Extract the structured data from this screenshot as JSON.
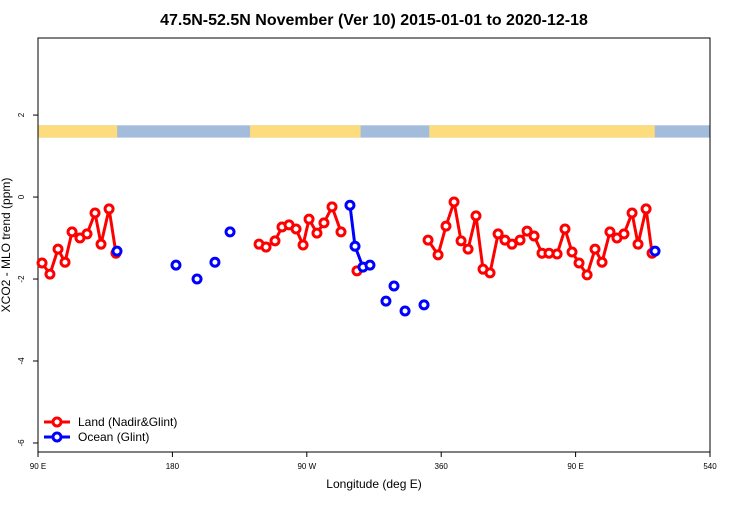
{
  "chart_data": {
    "type": "line",
    "title": "47.5N-52.5N November (Ver 10)   2015-01-01 to 2020-12-18",
    "x_label": "Longitude (deg E)",
    "y_label": "XCO2 - MLO trend (ppm)",
    "xlim": [
      90,
      540
    ],
    "xticks": [
      {
        "value": 90,
        "label": "90 E"
      },
      180,
      {
        "value": 270,
        "label": "90 W"
      },
      360,
      {
        "value": 450,
        "label": "90 E"
      },
      540
    ],
    "ylim": [
      -6.22,
      3.88
    ],
    "yticks": [
      -6,
      -4,
      -2,
      0,
      2
    ],
    "legend": "bottom-left",
    "surface_band": {
      "ylim": [
        1.45,
        1.75
      ],
      "land_color": "#fcdc7c",
      "ocean_color": "#a4bcdc",
      "land_ranges": [
        [
          90,
          143
        ],
        [
          232,
          306
        ],
        [
          352,
          503
        ]
      ]
    },
    "series": [
      {
        "name": "Land (Nadir&Glint)",
        "color": "#ff0000",
        "x": [
          92.7,
          98.0,
          103.4,
          108.1,
          112.8,
          118.1,
          122.8,
          128.2,
          132.2,
          137.6,
          142.2,
          null,
          238.0,
          242.7,
          248.7,
          253.4,
          258.1,
          262.8,
          267.5,
          271.5,
          276.8,
          281.5,
          286.9,
          292.9,
          null,
          303.6,
          null,
          351.2,
          357.9,
          363.2,
          368.6,
          373.3,
          378.0,
          383.3,
          388.0,
          392.7,
          398.1,
          402.7,
          407.4,
          412.8,
          417.5,
          422.2,
          427.5,
          432.2,
          437.6,
          442.9,
          447.6,
          452.3,
          457.7,
          463.0,
          467.7,
          473.0,
          477.7,
          482.4,
          487.8,
          491.8,
          497.2,
          501.2
        ],
        "values": [
          -1.61,
          -1.88,
          -1.27,
          -1.59,
          -0.85,
          -1.0,
          -0.9,
          -0.39,
          -1.15,
          -0.29,
          -1.37,
          null,
          -1.15,
          -1.22,
          -1.07,
          -0.73,
          -0.68,
          -0.78,
          -1.17,
          -0.54,
          -0.88,
          -0.63,
          -0.24,
          -0.85,
          null,
          -1.8,
          null,
          -1.05,
          -1.41,
          -0.71,
          -0.12,
          -1.07,
          -1.27,
          -0.46,
          -1.76,
          -1.85,
          -0.9,
          -1.05,
          -1.15,
          -1.05,
          -0.83,
          -0.95,
          -1.37,
          -1.37,
          -1.39,
          -0.78,
          -1.34,
          -1.61,
          -1.9,
          -1.27,
          -1.59,
          -0.85,
          -1.0,
          -0.9,
          -0.39,
          -1.15,
          -0.29,
          -1.37
        ]
      },
      {
        "name": "Ocean (Glint)",
        "color": "#0000ff",
        "x": [
          142.9,
          null,
          182.4,
          null,
          196.5,
          null,
          208.5,
          null,
          218.6,
          null,
          298.9,
          302.3,
          307.6,
          null,
          312.3,
          null,
          323.0,
          null,
          328.4,
          null,
          335.8,
          null,
          348.5,
          null,
          503.2
        ],
        "values": [
          -1.32,
          null,
          -1.66,
          null,
          -2.0,
          null,
          -1.59,
          null,
          -0.85,
          null,
          -0.2,
          -1.2,
          -1.71,
          null,
          -1.66,
          null,
          -2.54,
          null,
          -2.17,
          null,
          -2.78,
          null,
          -2.63,
          null,
          -1.32
        ]
      }
    ]
  }
}
